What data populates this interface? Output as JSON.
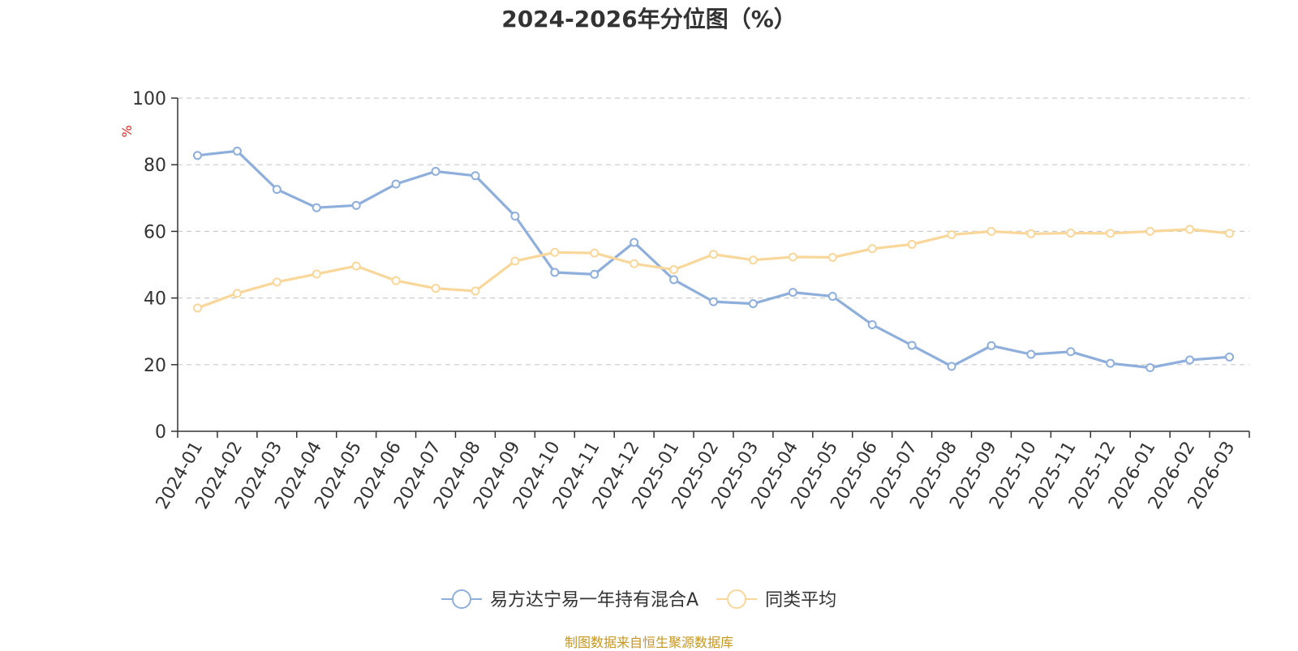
{
  "chart_data": {
    "type": "line",
    "title": "2024-2026年分位图（%）",
    "ylabel": "%",
    "xlabel": "",
    "ylim": [
      0,
      100
    ],
    "yticks": [
      "0",
      "20",
      "40",
      "60",
      "80",
      "100"
    ],
    "grid": "horizontal dashed",
    "legend_position": "bottom-center",
    "categories": [
      "2024-01",
      "2024-02",
      "2024-03",
      "2024-04",
      "2024-05",
      "2024-06",
      "2024-07",
      "2024-08",
      "2024-09",
      "2024-10",
      "2024-11",
      "2024-12",
      "2025-01",
      "2025-02",
      "2025-03",
      "2025-04",
      "2025-05",
      "2025-06",
      "2025-07",
      "2025-08",
      "2025-09",
      "2025-10",
      "2025-11",
      "2025-12",
      "2026-01",
      "2026-02",
      "2026-03"
    ],
    "series": [
      {
        "name": "易方达宁易一年持有混合A",
        "color": "#8eaedb",
        "values": [
          82.8,
          84.1,
          72.6,
          67.1,
          67.8,
          74.2,
          78.0,
          76.7,
          64.6,
          47.7,
          47.1,
          56.7,
          45.5,
          38.9,
          38.3,
          41.7,
          40.5,
          32.0,
          25.8,
          19.5,
          25.7,
          23.1,
          23.9,
          20.4,
          19.1,
          21.4,
          22.3
        ]
      },
      {
        "name": "同类平均",
        "color": "#f9d79a",
        "values": [
          37.0,
          41.4,
          44.8,
          47.2,
          49.6,
          45.2,
          42.9,
          42.1,
          51.1,
          53.7,
          53.5,
          50.3,
          48.5,
          53.1,
          51.4,
          52.3,
          52.2,
          54.8,
          56.1,
          59.0,
          60.0,
          59.3,
          59.5,
          59.4,
          60.0,
          60.6,
          59.4
        ]
      }
    ]
  },
  "footer": {
    "source": "制图数据来自恒生聚源数据库"
  }
}
